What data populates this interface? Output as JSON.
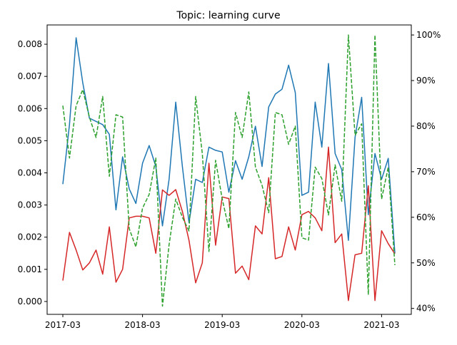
{
  "chart_data": {
    "type": "line",
    "title": "Topic: learning curve",
    "x_start": "2017-03",
    "x_step": "month",
    "xtick_labels": [
      "2017-03",
      "2018-03",
      "2019-03",
      "2020-03",
      "2021-03"
    ],
    "left_axis": {
      "ylim": [
        -0.0004,
        0.0086
      ],
      "ticks": [
        "0.000",
        "0.001",
        "0.002",
        "0.003",
        "0.004",
        "0.005",
        "0.006",
        "0.007",
        "0.008"
      ]
    },
    "right_axis": {
      "ylim": [
        38.7,
        102.2
      ],
      "ticks": [
        "40%",
        "50%",
        "60%",
        "70%",
        "80%",
        "90%",
        "100%"
      ]
    },
    "grid": false,
    "series": [
      {
        "color": "#1f77b4",
        "dash": "solid",
        "axis": "left",
        "values": [
          0.00365,
          0.0055,
          0.0082,
          0.0068,
          0.0057,
          0.0056,
          0.0055,
          0.0052,
          0.00285,
          0.0045,
          0.0035,
          0.00305,
          0.0043,
          0.00485,
          0.0042,
          0.00235,
          0.0038,
          0.0062,
          0.0042,
          0.00245,
          0.0038,
          0.0037,
          0.0048,
          0.0047,
          0.00465,
          0.0034,
          0.00438,
          0.0038,
          0.0045,
          0.00545,
          0.0042,
          0.00605,
          0.00645,
          0.0066,
          0.00735,
          0.0065,
          0.0033,
          0.0034,
          0.0062,
          0.0048,
          0.0074,
          0.0046,
          0.0041,
          0.0019,
          0.0051,
          0.00635,
          0.0027,
          0.0046,
          0.0038,
          0.00445,
          0.0015
        ]
      },
      {
        "color": "#d62728",
        "dash": "solid",
        "axis": "left",
        "values": [
          0.00065,
          0.00215,
          0.0016,
          0.00098,
          0.0012,
          0.0016,
          0.00085,
          0.00232,
          0.0006,
          0.001,
          0.0026,
          0.00265,
          0.00265,
          0.0026,
          0.0015,
          0.00347,
          0.0033,
          0.00348,
          0.0028,
          0.0019,
          0.00058,
          0.0012,
          0.0043,
          0.00175,
          0.00325,
          0.0032,
          0.00088,
          0.0011,
          0.00068,
          0.00235,
          0.0021,
          0.00385,
          0.00133,
          0.0014,
          0.00232,
          0.0016,
          0.0027,
          0.0028,
          0.0026,
          0.0022,
          0.0048,
          0.00183,
          0.0021,
          3e-05,
          0.00145,
          0.0015,
          0.0036,
          3e-05,
          0.0022,
          0.0018,
          0.00148
        ]
      },
      {
        "color": "#2ca02c",
        "dash": "dashed",
        "axis": "right",
        "values": [
          84.5,
          73,
          84.5,
          88,
          82,
          77.5,
          86.5,
          69,
          82.5,
          82,
          57.5,
          53.5,
          62,
          65,
          73,
          40.5,
          54,
          64,
          60,
          57,
          86.5,
          74,
          52.5,
          72.5,
          64,
          57.5,
          83,
          77.5,
          87.5,
          71,
          67,
          61,
          83,
          82.5,
          76,
          80,
          55.5,
          55,
          71,
          68.5,
          60.5,
          71.5,
          63.5,
          100,
          78,
          80.5,
          43,
          100,
          64,
          71,
          49.5
        ]
      }
    ]
  }
}
